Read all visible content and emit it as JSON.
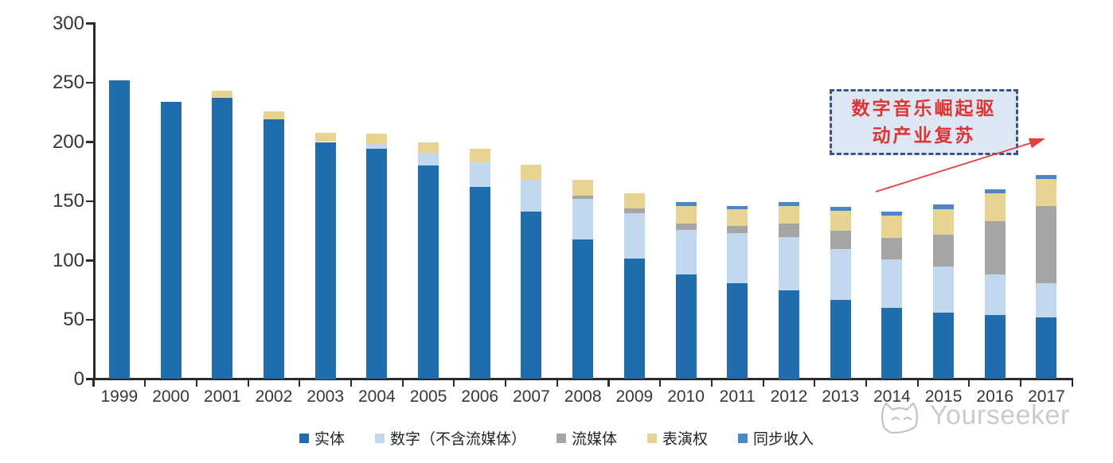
{
  "chart_data": {
    "type": "bar",
    "stacked": true,
    "grid": false,
    "legend_position": "bottom",
    "ylim": [
      0,
      300
    ],
    "yticks": [
      0,
      50,
      100,
      150,
      200,
      250,
      300
    ],
    "categories": [
      "1999",
      "2000",
      "2001",
      "2002",
      "2003",
      "2004",
      "2005",
      "2006",
      "2007",
      "2008",
      "2009",
      "2010",
      "2011",
      "2012",
      "2013",
      "2014",
      "2015",
      "2016",
      "2017"
    ],
    "series": [
      {
        "name": "实体",
        "color": "#1f6dac",
        "values": [
          252,
          234,
          237,
          219,
          200,
          194,
          180,
          162,
          141,
          118,
          102,
          88,
          81,
          75,
          67,
          60,
          56,
          54,
          52
        ]
      },
      {
        "name": "数字（不含流媒体）",
        "color": "#c2d8ee",
        "values": [
          0,
          0,
          0,
          0,
          0,
          4,
          11,
          21,
          27,
          34,
          38,
          38,
          42,
          45,
          43,
          41,
          39,
          34,
          29
        ]
      },
      {
        "name": "流媒体",
        "color": "#a5a5a5",
        "values": [
          0,
          0,
          0,
          0,
          0,
          0,
          0,
          0,
          0,
          3,
          4,
          5,
          6,
          11,
          15,
          18,
          27,
          45,
          65
        ]
      },
      {
        "name": "表演权",
        "color": "#e8d492",
        "values": [
          0,
          0,
          6,
          7,
          8,
          9,
          9,
          11,
          13,
          13,
          13,
          15,
          14,
          15,
          17,
          19,
          21,
          24,
          23
        ]
      },
      {
        "name": "同步收入",
        "color": "#4c87c5",
        "values": [
          0,
          0,
          0,
          0,
          0,
          0,
          0,
          0,
          0,
          0,
          0,
          3,
          3,
          3,
          3,
          3,
          4,
          3,
          3
        ]
      }
    ]
  },
  "annotation": {
    "line1": "数字音乐崛起驱",
    "line2": "动产业复苏",
    "text_color": "#dd3434",
    "border_color": "#35558f",
    "fill_color": "#dde6f3",
    "arrow_color": "#e2403c"
  },
  "watermark": {
    "text": "Yourseeker"
  }
}
